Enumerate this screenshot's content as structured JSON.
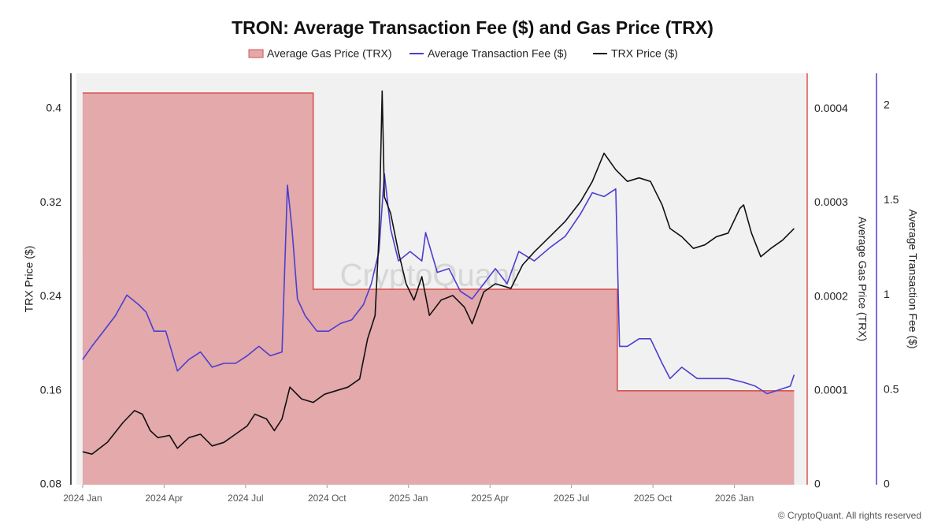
{
  "chart_data": {
    "type": "line",
    "title": "TRON: Average Transaction Fee ($) and Gas Price (TRX)",
    "watermark": "CryptoQuant",
    "copyright": "© CryptoQuant. All rights reserved",
    "ylabel": "TRX Price ($)",
    "y2label": "Average Gas Price (TRX)",
    "y3label": "Average Transaction Fee ($)",
    "xlim": [
      -0.23,
      26.68
    ],
    "xticks": [
      {
        "value": 0,
        "label": "2024 Jan"
      },
      {
        "value": 3,
        "label": "2024 Apr"
      },
      {
        "value": 6,
        "label": "2024 Jul"
      },
      {
        "value": 9,
        "label": "2024 Oct"
      },
      {
        "value": 12,
        "label": "2025 Jan"
      },
      {
        "value": 15,
        "label": "2025 Apr"
      },
      {
        "value": 18,
        "label": "2025 Jul"
      },
      {
        "value": 21,
        "label": "2025 Oct"
      },
      {
        "value": 24,
        "label": "2026 Jan"
      }
    ],
    "ylim": [
      0.08,
      0.43
    ],
    "yticks": [
      0.08,
      0.16,
      0.24,
      0.32,
      0.4
    ],
    "y2lim": [
      0,
      0.000438
    ],
    "y2ticks": [
      0,
      0.0001,
      0.0002,
      0.0003,
      0.0004
    ],
    "y3lim": [
      0,
      2.17
    ],
    "y3ticks": [
      0,
      0.5,
      1,
      1.5,
      2
    ],
    "grid": false,
    "legend": "top",
    "series": [
      {
        "name": "Average Gas Price (TRX)",
        "color": "#d9534f",
        "fill": "#e3a9ab",
        "axis": "y2",
        "area": true,
        "x": [
          0,
          8.49,
          8.49,
          19.69,
          19.69,
          26.2
        ],
        "values": [
          0.000417,
          0.000417,
          0.000208,
          0.000208,
          0.0001,
          0.0001
        ]
      },
      {
        "name": "Average Transaction Fee ($)",
        "color": "#4b3fcf",
        "axis": "y3",
        "x": [
          0,
          0.34,
          0.77,
          1.2,
          1.63,
          2.06,
          2.34,
          2.63,
          3.06,
          3.49,
          3.91,
          4.34,
          4.77,
          5.2,
          5.63,
          6.06,
          6.49,
          6.91,
          7.34,
          7.54,
          7.71,
          7.91,
          8.2,
          8.63,
          9.06,
          9.49,
          9.91,
          10.34,
          10.63,
          10.91,
          11.11,
          11.34,
          11.63,
          12.06,
          12.49,
          12.63,
          13.06,
          13.49,
          13.91,
          14.34,
          14.77,
          15.2,
          15.63,
          16.06,
          16.63,
          17.2,
          17.77,
          18.34,
          18.77,
          19.2,
          19.63,
          19.77,
          20.06,
          20.49,
          20.91,
          21.34,
          21.63,
          22.06,
          22.63,
          23.2,
          23.77,
          24.34,
          24.77,
          25.2,
          25.63,
          26.06,
          26.2
        ],
        "values": [
          0.66,
          0.73,
          0.81,
          0.89,
          1.0,
          0.95,
          0.91,
          0.81,
          0.81,
          0.6,
          0.66,
          0.7,
          0.62,
          0.64,
          0.64,
          0.68,
          0.73,
          0.68,
          0.7,
          1.58,
          1.35,
          0.98,
          0.89,
          0.81,
          0.81,
          0.85,
          0.87,
          0.95,
          1.06,
          1.23,
          1.64,
          1.35,
          1.18,
          1.23,
          1.18,
          1.33,
          1.12,
          1.14,
          1.02,
          0.98,
          1.06,
          1.14,
          1.06,
          1.23,
          1.18,
          1.25,
          1.31,
          1.43,
          1.54,
          1.52,
          1.56,
          0.73,
          0.73,
          0.77,
          0.77,
          0.64,
          0.56,
          0.62,
          0.56,
          0.56,
          0.56,
          0.54,
          0.52,
          0.48,
          0.5,
          0.52,
          0.58
        ]
      },
      {
        "name": "TRX Price ($)",
        "color": "#111111",
        "x": [
          0,
          0.34,
          0.91,
          1.49,
          1.91,
          2.2,
          2.49,
          2.77,
          3.2,
          3.49,
          3.91,
          4.34,
          4.77,
          5.2,
          5.63,
          6.06,
          6.34,
          6.77,
          7.06,
          7.34,
          7.63,
          8.06,
          8.49,
          8.91,
          9.34,
          9.77,
          10.2,
          10.49,
          10.77,
          10.91,
          11.03,
          11.11,
          11.34,
          11.63,
          11.91,
          12.2,
          12.49,
          12.77,
          13.2,
          13.63,
          14.06,
          14.34,
          14.77,
          15.2,
          15.77,
          16.2,
          16.63,
          17.2,
          17.77,
          18.34,
          18.77,
          19.2,
          19.63,
          20.06,
          20.49,
          20.91,
          21.34,
          21.63,
          22.06,
          22.49,
          22.91,
          23.34,
          23.77,
          24.2,
          24.34,
          24.63,
          24.97,
          25.34,
          25.77,
          26.2
        ],
        "values": [
          0.108,
          0.106,
          0.116,
          0.133,
          0.143,
          0.14,
          0.126,
          0.12,
          0.122,
          0.111,
          0.12,
          0.123,
          0.113,
          0.116,
          0.123,
          0.13,
          0.14,
          0.136,
          0.126,
          0.136,
          0.163,
          0.153,
          0.15,
          0.157,
          0.16,
          0.163,
          0.17,
          0.204,
          0.224,
          0.291,
          0.415,
          0.325,
          0.311,
          0.278,
          0.251,
          0.237,
          0.257,
          0.224,
          0.237,
          0.241,
          0.231,
          0.217,
          0.244,
          0.251,
          0.247,
          0.267,
          0.278,
          0.291,
          0.304,
          0.321,
          0.338,
          0.362,
          0.348,
          0.338,
          0.341,
          0.338,
          0.318,
          0.298,
          0.291,
          0.281,
          0.284,
          0.291,
          0.294,
          0.315,
          0.318,
          0.294,
          0.274,
          0.281,
          0.288,
          0.298
        ]
      }
    ]
  }
}
